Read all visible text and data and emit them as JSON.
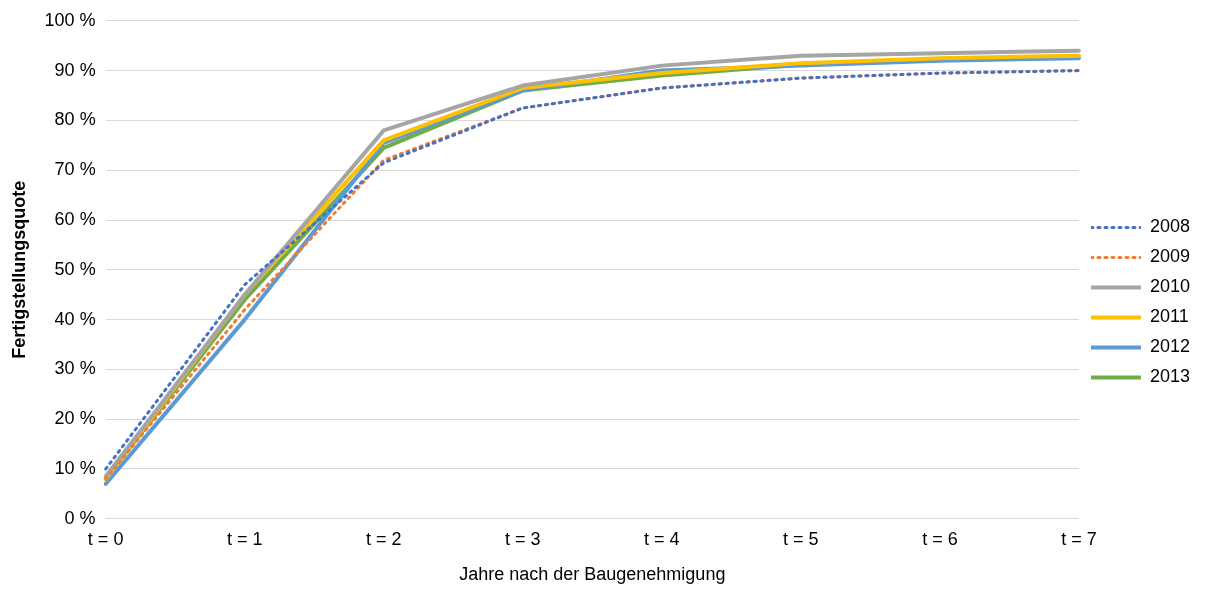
{
  "chart_data": {
    "type": "line",
    "xlabel": "Jahre nach der Baugenehmigung",
    "ylabel": "Fertigstellungsquote",
    "categories": [
      "t = 0",
      "t = 1",
      "t = 2",
      "t = 3",
      "t = 4",
      "t = 5",
      "t = 6",
      "t = 7"
    ],
    "series": [
      {
        "name": "2008",
        "color": "#4472c4",
        "line_style": "dotted",
        "values": [
          10,
          47,
          71.5,
          82.5,
          86.5,
          88.5,
          89.5,
          90
        ]
      },
      {
        "name": "2009",
        "color": "#ed7d31",
        "line_style": "dotted",
        "values": [
          8,
          42,
          72,
          82.5,
          86.5,
          88.5,
          89.5,
          90
        ]
      },
      {
        "name": "2010",
        "color": "#a5a5a5",
        "line_style": "solid",
        "values": [
          8.5,
          45,
          78,
          87,
          91,
          93,
          93.5,
          94
        ]
      },
      {
        "name": "2011",
        "color": "#ffc000",
        "line_style": "solid",
        "values": [
          8,
          45,
          76,
          86.5,
          89.5,
          91.5,
          92.5,
          93
        ]
      },
      {
        "name": "2012",
        "color": "#5b9bd5",
        "line_style": "solid",
        "values": [
          7,
          40,
          75.5,
          86,
          90,
          91,
          92,
          92.5
        ]
      },
      {
        "name": "2013",
        "color": "#70ad47",
        "line_style": "solid",
        "values": [
          8,
          44,
          74.5,
          86,
          89,
          91.2,
          92.3,
          null
        ]
      }
    ],
    "ylim": [
      0,
      100
    ],
    "yticks": [
      {
        "value": 0,
        "label": "0 %"
      },
      {
        "value": 10,
        "label": "10 %"
      },
      {
        "value": 20,
        "label": "20 %"
      },
      {
        "value": 30,
        "label": "30 %"
      },
      {
        "value": 40,
        "label": "40 %"
      },
      {
        "value": 50,
        "label": "50 %"
      },
      {
        "value": 60,
        "label": "60 %"
      },
      {
        "value": 70,
        "label": "70 %"
      },
      {
        "value": 80,
        "label": "80 %"
      },
      {
        "value": 90,
        "label": "90 %"
      },
      {
        "value": 100,
        "label": "100 %"
      }
    ],
    "grid": "y",
    "legend": "right",
    "marker": "none"
  }
}
